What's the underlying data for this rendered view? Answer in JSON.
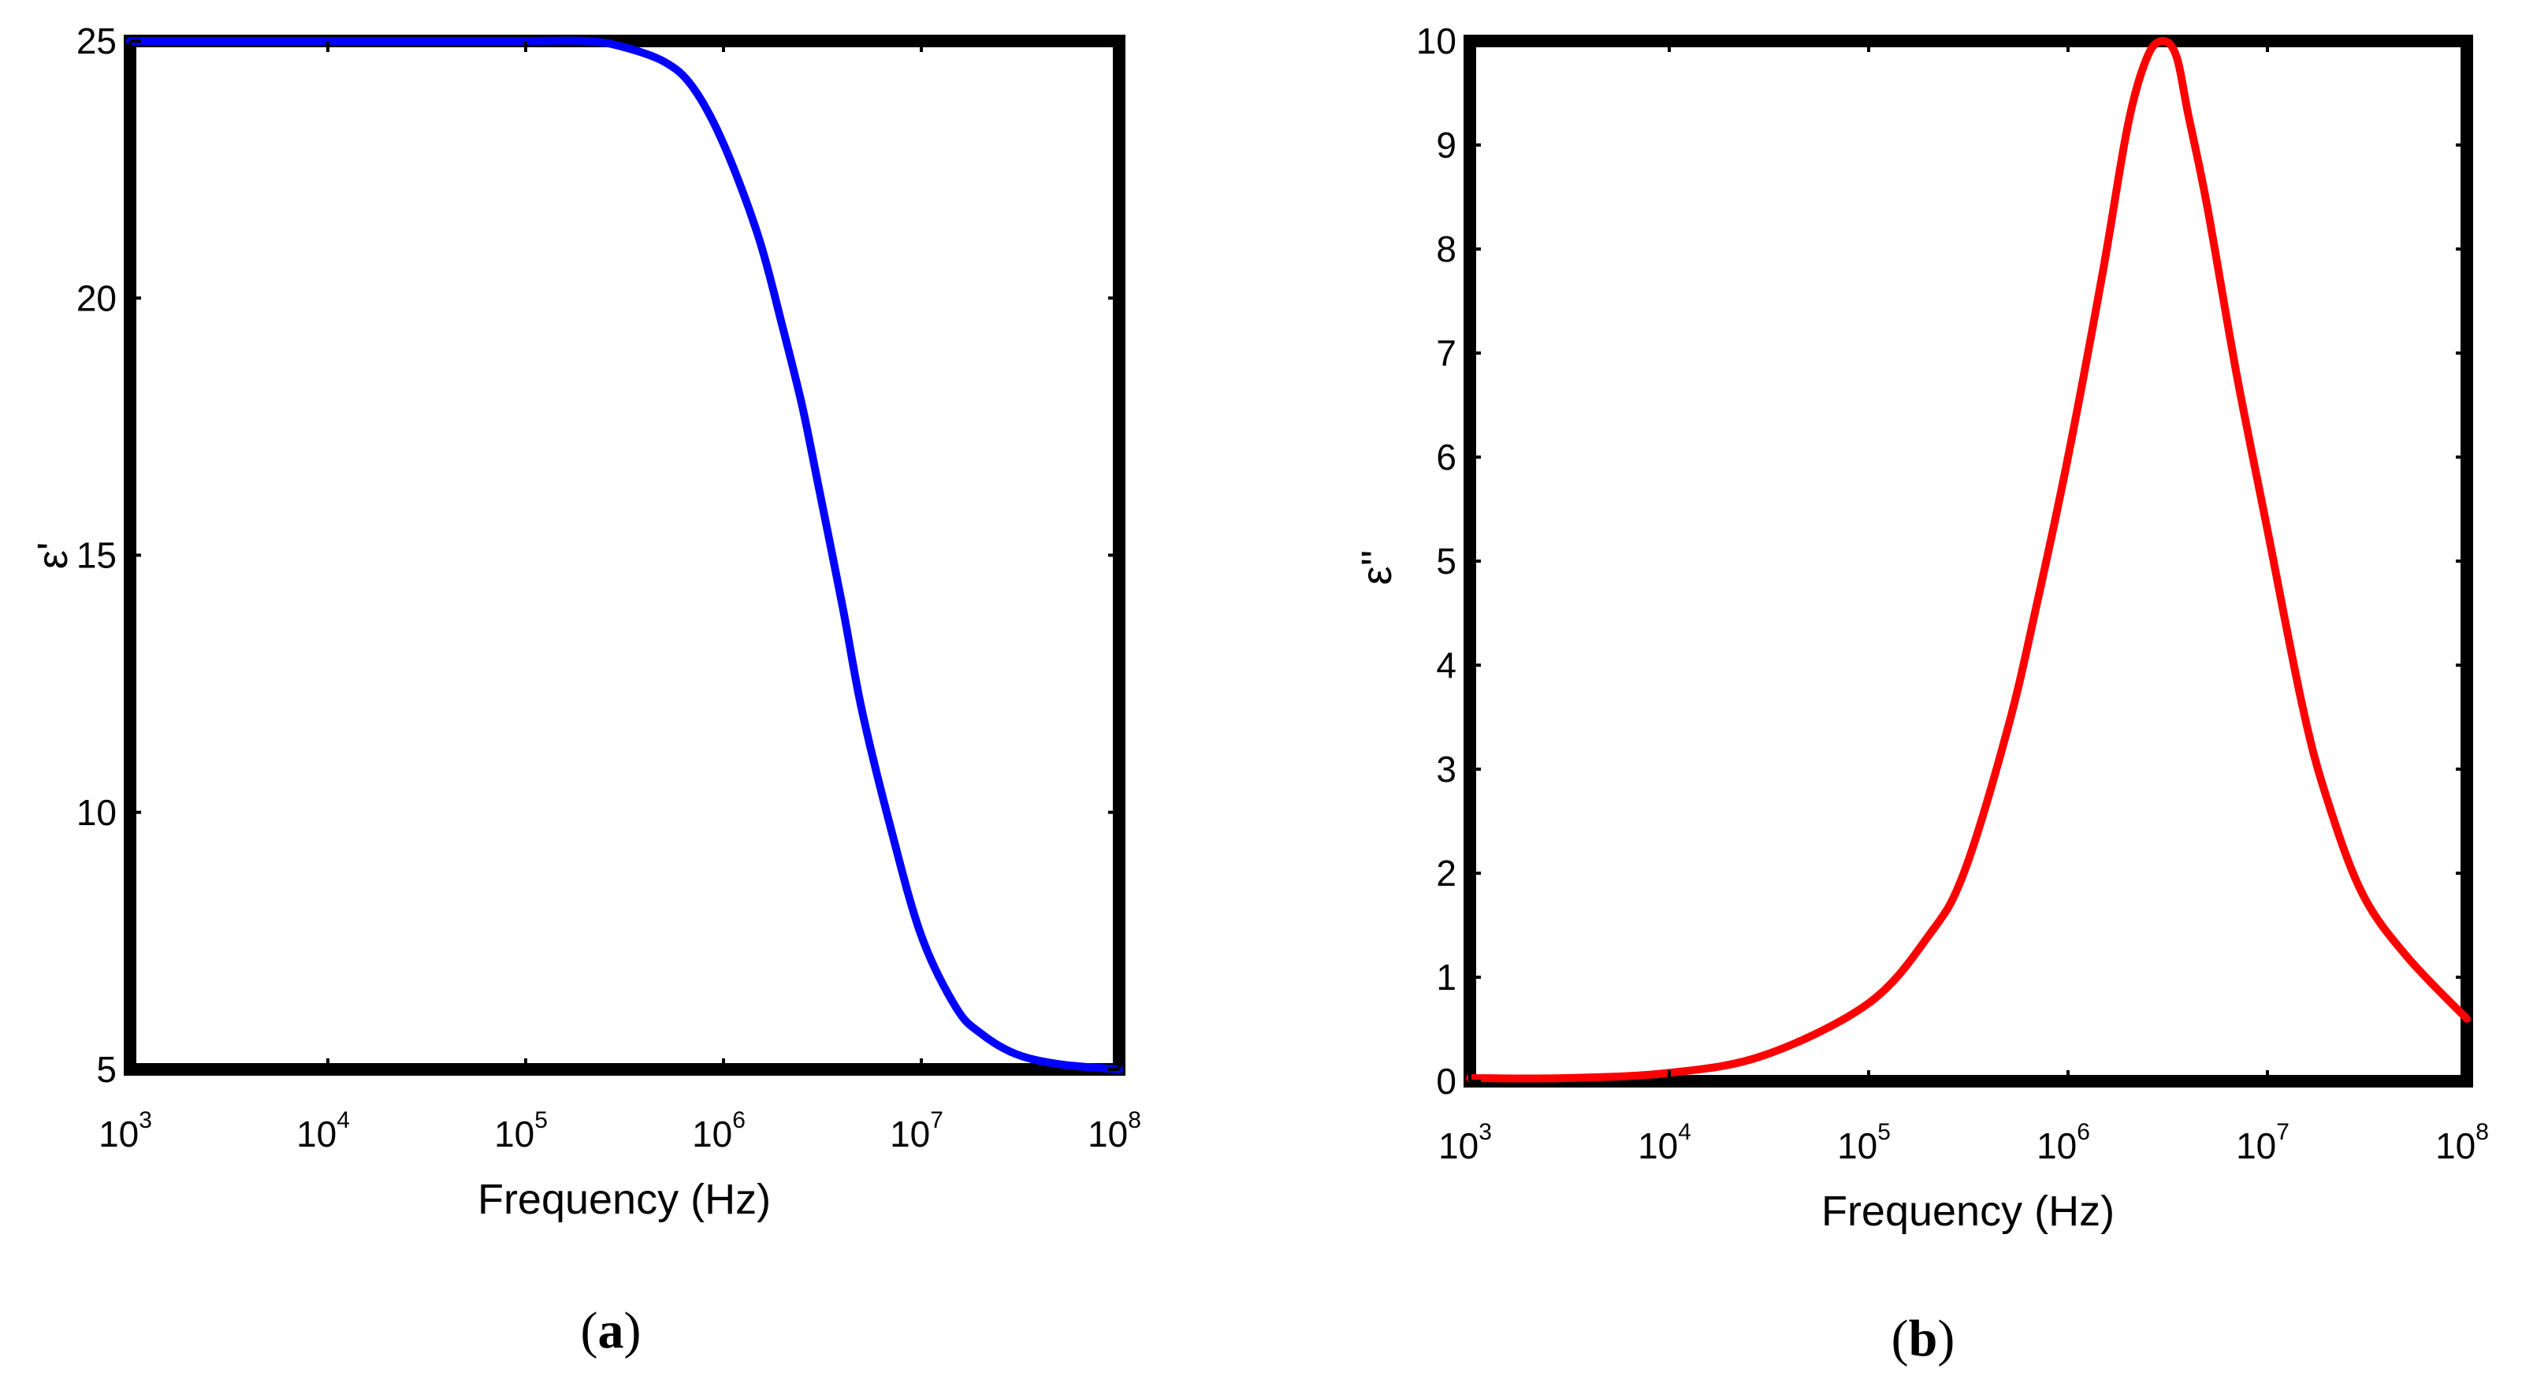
{
  "chart_data": [
    {
      "type": "line",
      "panel_label": "a",
      "xlabel": "Frequency (Hz)",
      "ylabel": "ε'",
      "xscale": "log",
      "xlim": [
        1000,
        100000000
      ],
      "ylim": [
        5,
        25
      ],
      "x_ticks": [
        {
          "base": "10",
          "exp": "3"
        },
        {
          "base": "10",
          "exp": "4"
        },
        {
          "base": "10",
          "exp": "5"
        },
        {
          "base": "10",
          "exp": "6"
        },
        {
          "base": "10",
          "exp": "7"
        },
        {
          "base": "10",
          "exp": "8"
        }
      ],
      "y_ticks": [
        "5",
        "10",
        "15",
        "20",
        "25"
      ],
      "grid": false,
      "color": "#0000ff",
      "series": [
        {
          "x": [
            1000,
            10000,
            100000,
            200000,
            300000,
            500000,
            700000,
            1000000,
            1500000,
            2000000,
            2500000,
            3000000,
            4000000,
            5000000,
            7000000,
            10000000,
            15000000,
            20000000,
            30000000,
            50000000,
            100000000
          ],
          "values": [
            25,
            25,
            25,
            25,
            24.9,
            24.6,
            24.1,
            23.0,
            21.2,
            19.4,
            17.9,
            16.4,
            14.0,
            12.0,
            9.7,
            7.6,
            6.2,
            5.7,
            5.3,
            5.1,
            5.0
          ]
        }
      ]
    },
    {
      "type": "line",
      "panel_label": "b",
      "xlabel": "Frequency (Hz)",
      "ylabel": "ε''",
      "xscale": "log",
      "xlim": [
        1000,
        100000000
      ],
      "ylim": [
        0,
        10
      ],
      "x_ticks": [
        {
          "base": "10",
          "exp": "3"
        },
        {
          "base": "10",
          "exp": "4"
        },
        {
          "base": "10",
          "exp": "5"
        },
        {
          "base": "10",
          "exp": "6"
        },
        {
          "base": "10",
          "exp": "7"
        },
        {
          "base": "10",
          "exp": "8"
        }
      ],
      "y_ticks": [
        "0",
        "1",
        "2",
        "3",
        "4",
        "5",
        "6",
        "7",
        "8",
        "9",
        "10"
      ],
      "grid": false,
      "color": "#ff0000",
      "series": [
        {
          "x": [
            1000,
            3000,
            10000,
            30000,
            100000,
            200000,
            300000,
            500000,
            700000,
            1000000,
            1500000,
            2000000,
            2500000,
            3000000,
            3500000,
            4000000,
            5000000,
            7000000,
            10000000,
            15000000,
            20000000,
            30000000,
            50000000,
            100000000
          ],
          "values": [
            0.03,
            0.03,
            0.08,
            0.25,
            0.75,
            1.4,
            2.0,
            3.4,
            4.6,
            6.0,
            7.8,
            9.2,
            9.85,
            10.0,
            9.85,
            9.3,
            8.4,
            6.8,
            5.3,
            3.6,
            2.7,
            1.8,
            1.2,
            0.6
          ]
        }
      ]
    }
  ]
}
